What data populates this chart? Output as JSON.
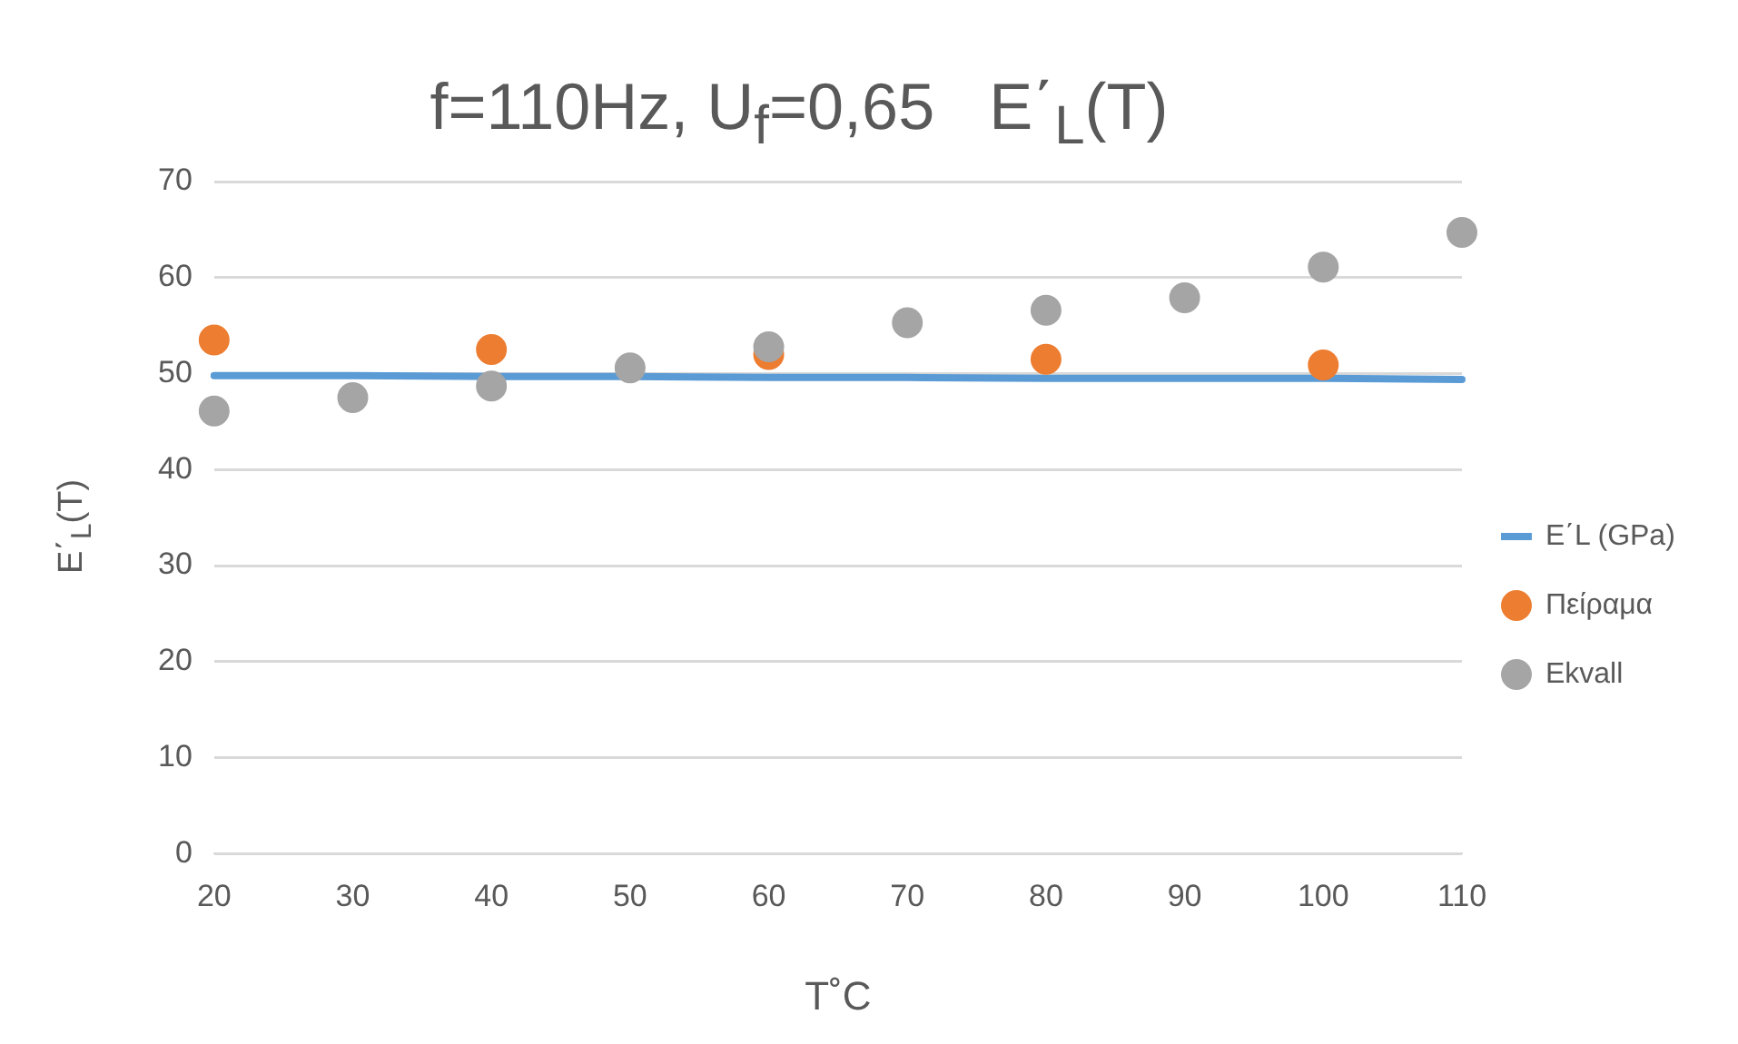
{
  "chart_data": {
    "type": "line",
    "title": "f=110Hz, U$_{f}$=0,65   E΄$_{L}$(T)",
    "xlabel": "T˚C",
    "ylabel": "E΄$_{L}$(T)",
    "categories": [
      "20",
      "30",
      "40",
      "50",
      "60",
      "70",
      "80",
      "90",
      "100",
      "110"
    ],
    "series": [
      {
        "name": "E΄L (GPa)",
        "marker": "none",
        "color": "#5b9bd5",
        "values": [
          49.8,
          49.8,
          49.7,
          49.7,
          49.6,
          49.6,
          49.5,
          49.5,
          49.5,
          49.4
        ]
      },
      {
        "name": "Πείραμα",
        "type": "scatter",
        "color": "#ed7d31",
        "values": [
          53.5,
          null,
          52.5,
          null,
          52.0,
          null,
          51.5,
          null,
          50.9,
          null
        ]
      },
      {
        "name": "Ekvall",
        "type": "scatter",
        "color": "#a5a5a5",
        "values": [
          46.1,
          47.5,
          48.7,
          50.6,
          52.8,
          55.3,
          56.6,
          57.9,
          61.1,
          64.7
        ]
      }
    ],
    "ylim": [
      0,
      70
    ],
    "yticks": [
      0,
      10,
      20,
      30,
      40,
      50,
      60,
      70
    ],
    "grid": "y",
    "legend": "right",
    "marker": "circle",
    "line_style": "solid"
  }
}
